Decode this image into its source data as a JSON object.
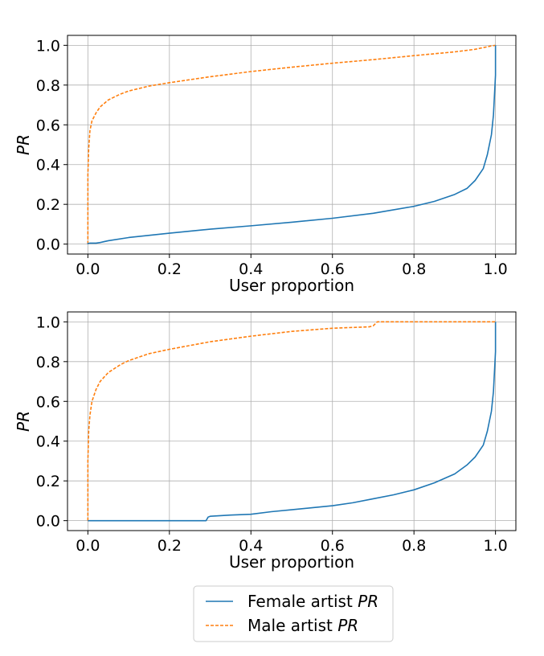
{
  "colors": {
    "female": "#1f77b4",
    "male": "#ff7f0e",
    "grid": "#b0b0b0",
    "axis": "#000000"
  },
  "legend": {
    "entries": [
      {
        "series": "female",
        "label_plain": "Female artist ",
        "label_italic": "PR",
        "style": "solid"
      },
      {
        "series": "male",
        "label_plain": "Male artist ",
        "label_italic": "PR",
        "style": "dashed"
      }
    ],
    "placement": "bottom-center"
  },
  "chart_data": [
    {
      "type": "line",
      "xlabel": "User proportion",
      "ylabel": "PR",
      "xlim": [
        -0.05,
        1.05
      ],
      "ylim": [
        -0.05,
        1.05
      ],
      "xticks": [
        0.0,
        0.2,
        0.4,
        0.6,
        0.8,
        1.0
      ],
      "yticks": [
        0.0,
        0.2,
        0.4,
        0.6,
        0.8,
        1.0
      ],
      "xtick_labels": [
        "0.0",
        "0.2",
        "0.4",
        "0.6",
        "0.8",
        "1.0"
      ],
      "ytick_labels": [
        "0.0",
        "0.2",
        "0.4",
        "0.6",
        "0.8",
        "1.0"
      ],
      "grid": true,
      "series": [
        {
          "key": "female",
          "name": "Female artist PR",
          "x": [
            0.0,
            0.0,
            0.005,
            0.01,
            0.02,
            0.03,
            0.05,
            0.1,
            0.2,
            0.3,
            0.4,
            0.5,
            0.6,
            0.7,
            0.8,
            0.85,
            0.9,
            0.93,
            0.95,
            0.97,
            0.98,
            0.99,
            0.995,
            1.0,
            1.0
          ],
          "y": [
            0.0,
            0.003,
            0.005,
            0.005,
            0.005,
            0.008,
            0.017,
            0.033,
            0.055,
            0.075,
            0.092,
            0.11,
            0.13,
            0.155,
            0.19,
            0.215,
            0.25,
            0.28,
            0.32,
            0.38,
            0.45,
            0.55,
            0.65,
            0.85,
            1.0
          ]
        },
        {
          "key": "male",
          "name": "Male artist PR",
          "x": [
            0.0,
            0.0,
            0.002,
            0.005,
            0.01,
            0.02,
            0.03,
            0.05,
            0.08,
            0.1,
            0.15,
            0.2,
            0.3,
            0.4,
            0.5,
            0.6,
            0.7,
            0.8,
            0.9,
            0.95,
            0.99,
            1.0
          ],
          "y": [
            0.0,
            0.35,
            0.48,
            0.57,
            0.62,
            0.66,
            0.69,
            0.725,
            0.755,
            0.77,
            0.795,
            0.812,
            0.842,
            0.868,
            0.89,
            0.91,
            0.928,
            0.948,
            0.967,
            0.98,
            0.997,
            1.0
          ]
        }
      ]
    },
    {
      "type": "line",
      "xlabel": "User proportion",
      "ylabel": "PR",
      "xlim": [
        -0.05,
        1.05
      ],
      "ylim": [
        -0.05,
        1.05
      ],
      "xticks": [
        0.0,
        0.2,
        0.4,
        0.6,
        0.8,
        1.0
      ],
      "yticks": [
        0.0,
        0.2,
        0.4,
        0.6,
        0.8,
        1.0
      ],
      "xtick_labels": [
        "0.0",
        "0.2",
        "0.4",
        "0.6",
        "0.8",
        "1.0"
      ],
      "ytick_labels": [
        "0.0",
        "0.2",
        "0.4",
        "0.6",
        "0.8",
        "1.0"
      ],
      "grid": true,
      "series": [
        {
          "key": "female",
          "name": "Female artist PR",
          "x": [
            0.0,
            0.29,
            0.295,
            0.3,
            0.35,
            0.4,
            0.45,
            0.5,
            0.55,
            0.6,
            0.65,
            0.7,
            0.75,
            0.8,
            0.85,
            0.9,
            0.93,
            0.95,
            0.97,
            0.98,
            0.99,
            0.995,
            1.0,
            1.0
          ],
          "y": [
            0.0,
            0.0,
            0.018,
            0.022,
            0.028,
            0.032,
            0.045,
            0.055,
            0.065,
            0.075,
            0.09,
            0.11,
            0.13,
            0.155,
            0.19,
            0.235,
            0.28,
            0.32,
            0.38,
            0.45,
            0.55,
            0.65,
            0.85,
            1.0
          ]
        },
        {
          "key": "male",
          "name": "Male artist PR",
          "x": [
            0.0,
            0.0,
            0.002,
            0.005,
            0.01,
            0.02,
            0.03,
            0.05,
            0.08,
            0.1,
            0.15,
            0.2,
            0.3,
            0.4,
            0.5,
            0.6,
            0.69,
            0.7,
            0.71,
            0.8,
            0.9,
            1.0
          ],
          "y": [
            0.0,
            0.3,
            0.45,
            0.53,
            0.6,
            0.66,
            0.7,
            0.745,
            0.785,
            0.805,
            0.84,
            0.862,
            0.9,
            0.928,
            0.952,
            0.968,
            0.975,
            0.98,
            1.0,
            1.0,
            1.0,
            1.0
          ]
        }
      ]
    }
  ]
}
